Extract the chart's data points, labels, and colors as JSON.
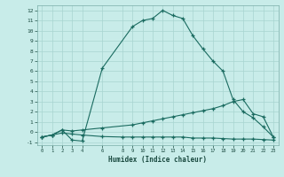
{
  "xlabel": "Humidex (Indice chaleur)",
  "bg_color": "#c8ece9",
  "grid_color": "#a8d4d0",
  "line_color": "#1a6b60",
  "xlim": [
    -0.5,
    23.5
  ],
  "ylim": [
    -1.3,
    12.5
  ],
  "xtick_vals": [
    0,
    1,
    2,
    3,
    4,
    6,
    8,
    9,
    10,
    11,
    12,
    13,
    14,
    15,
    16,
    17,
    18,
    19,
    20,
    21,
    22,
    23
  ],
  "ytick_vals": [
    -1,
    0,
    1,
    2,
    3,
    4,
    5,
    6,
    7,
    8,
    9,
    10,
    11,
    12
  ],
  "line1_x": [
    0,
    1,
    2,
    3,
    4,
    6,
    9,
    10,
    11,
    12,
    13,
    14,
    15,
    16,
    17,
    18,
    19,
    20,
    21,
    22,
    23
  ],
  "line1_y": [
    -0.5,
    -0.3,
    0.2,
    -0.8,
    -0.9,
    6.3,
    10.4,
    11.0,
    11.2,
    12.0,
    11.5,
    11.2,
    9.5,
    8.2,
    7.0,
    6.0,
    3.2,
    2.0,
    1.4,
    0.5,
    -0.5
  ],
  "line2_x": [
    0,
    1,
    2,
    3,
    4,
    6,
    9,
    10,
    11,
    12,
    13,
    14,
    15,
    16,
    17,
    18,
    19,
    20,
    21,
    22,
    23
  ],
  "line2_y": [
    -0.5,
    -0.3,
    0.2,
    0.1,
    0.2,
    0.4,
    0.7,
    0.9,
    1.1,
    1.3,
    1.5,
    1.7,
    1.9,
    2.1,
    2.3,
    2.6,
    3.0,
    3.2,
    1.8,
    1.5,
    -0.5
  ],
  "line3_x": [
    0,
    1,
    2,
    3,
    4,
    6,
    8,
    9,
    10,
    11,
    12,
    13,
    14,
    15,
    16,
    17,
    18,
    19,
    20,
    21,
    22,
    23
  ],
  "line3_y": [
    -0.5,
    -0.3,
    -0.1,
    -0.2,
    -0.3,
    -0.45,
    -0.5,
    -0.5,
    -0.5,
    -0.5,
    -0.5,
    -0.5,
    -0.5,
    -0.6,
    -0.6,
    -0.6,
    -0.65,
    -0.7,
    -0.7,
    -0.7,
    -0.75,
    -0.8
  ]
}
